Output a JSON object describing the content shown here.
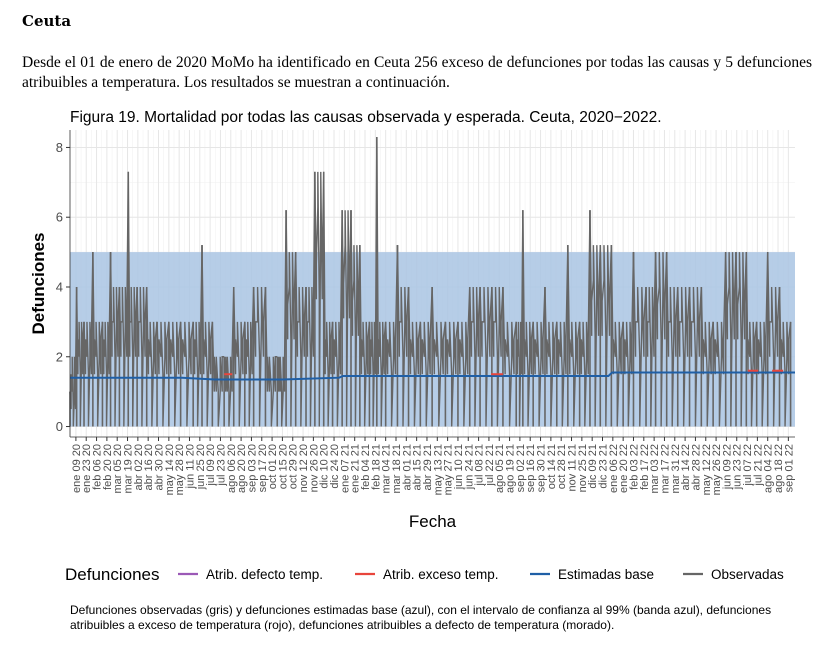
{
  "section_title": "Ceuta",
  "intro_text": "Desde el 01 de enero de 2020 MoMo ha identificado en Ceuta 256 exceso de defunciones por todas las causas y 5 defunciones atribuibles a temperatura. Los resultados se muestran a continuación.",
  "caption": "Defunciones observadas (gris) y defunciones estimadas base (azul), con el intervalo de confianza al 99% (banda azul), defunciones atribuibles a exceso de temperatura (rojo), defunciones atribuibles a defecto de temperatura (morado).",
  "colors": {
    "observed": "#666666",
    "baseline": "#1f5fa6",
    "band": "#a9c4e3",
    "excess": "#e8453c",
    "deficit": "#9b59b6",
    "grid": "#e6e6e6"
  },
  "chart_data": {
    "type": "line",
    "title": "Figura 19. Mortalidad por todas las causas observada y esperada. Ceuta, 2020−2022.",
    "xlabel": "Fecha",
    "ylabel": "Defunciones",
    "ylim": [
      -0.3,
      8.5
    ],
    "yticks": [
      0,
      2,
      4,
      6,
      8
    ],
    "grid": true,
    "x_range": [
      "2020-01-01",
      "2022-09-10"
    ],
    "x_tick_labels": [
      "ene 09 20",
      "ene 23 20",
      "feb 06 20",
      "feb 20 20",
      "mar 05 20",
      "mar 19 20",
      "abr 02 20",
      "abr 16 20",
      "abr 30 20",
      "may 14 20",
      "may 28 20",
      "jun 11 20",
      "jun 25 20",
      "jul 09 20",
      "jul 23 20",
      "ago 06 20",
      "ago 20 20",
      "sep 03 20",
      "sep 17 20",
      "oct 01 20",
      "oct 15 20",
      "oct 29 20",
      "nov 12 20",
      "nov 26 20",
      "dic 10 20",
      "dic 24 20",
      "ene 07 21",
      "ene 21 21",
      "feb 04 21",
      "feb 18 21",
      "mar 04 21",
      "mar 18 21",
      "abr 01 21",
      "abr 15 21",
      "abr 29 21",
      "may 13 21",
      "may 27 21",
      "jun 10 21",
      "jun 24 21",
      "jul 08 21",
      "jul 22 21",
      "ago 05 21",
      "ago 19 21",
      "sep 02 21",
      "sep 16 21",
      "sep 30 21",
      "oct 14 21",
      "oct 28 21",
      "nov 11 21",
      "nov 25 21",
      "dic 09 21",
      "dic 23 21",
      "ene 06 22",
      "ene 20 22",
      "feb 03 22",
      "feb 17 22",
      "mar 03 22",
      "mar 17 22",
      "mar 31 22",
      "abr 14 22",
      "abr 28 22",
      "may 12 22",
      "may 26 22",
      "jun 09 22",
      "jun 23 22",
      "jul 07 22",
      "jul 21 22",
      "ago 04 22",
      "ago 18 22",
      "sep 01 22"
    ],
    "confidence_band": {
      "lower": 0,
      "upper": 5
    },
    "legend": {
      "title": "Defunciones",
      "placement": "bottom",
      "entries": [
        "Atrib. defecto temp.",
        "Atrib. exceso temp.",
        "Estimadas base",
        "Observadas"
      ]
    },
    "series": [
      {
        "name": "Estimadas base",
        "values": [
          {
            "x": "2020-01-01",
            "y": 1.4
          },
          {
            "x": "2020-06-01",
            "y": 1.4
          },
          {
            "x": "2020-07-15",
            "y": 1.35
          },
          {
            "x": "2020-10-15",
            "y": 1.35
          },
          {
            "x": "2020-12-31",
            "y": 1.4
          },
          {
            "x": "2021-01-05",
            "y": 1.45
          },
          {
            "x": "2021-12-31",
            "y": 1.45
          },
          {
            "x": "2022-01-05",
            "y": 1.55
          },
          {
            "x": "2022-09-10",
            "y": 1.55
          }
        ]
      },
      {
        "name": "Atrib. exceso temp.",
        "values": [
          {
            "x": "2020-07-28",
            "y": 1.5
          },
          {
            "x": "2020-08-08",
            "y": 1.5
          },
          {
            "x": "2021-07-25",
            "y": 1.5
          },
          {
            "x": "2021-08-10",
            "y": 1.5
          },
          {
            "x": "2022-07-08",
            "y": 1.6
          },
          {
            "x": "2022-07-22",
            "y": 1.6
          },
          {
            "x": "2022-08-10",
            "y": 1.6
          },
          {
            "x": "2022-08-25",
            "y": 1.6
          }
        ]
      },
      {
        "name": "Observadas",
        "values": [
          {
            "x": "2020-01-01",
            "y": 1
          },
          {
            "x": "2020-01-10",
            "y": 4
          },
          {
            "x": "2020-01-20",
            "y": 3
          },
          {
            "x": "2020-02-01",
            "y": 5
          },
          {
            "x": "2020-02-14",
            "y": 3
          },
          {
            "x": "2020-02-25",
            "y": 5
          },
          {
            "x": "2020-03-08",
            "y": 4
          },
          {
            "x": "2020-03-20",
            "y": 7.3
          },
          {
            "x": "2020-04-01",
            "y": 4
          },
          {
            "x": "2020-04-14",
            "y": 4
          },
          {
            "x": "2020-04-28",
            "y": 3
          },
          {
            "x": "2020-05-14",
            "y": 3
          },
          {
            "x": "2020-05-30",
            "y": 3
          },
          {
            "x": "2020-06-16",
            "y": 3
          },
          {
            "x": "2020-06-28",
            "y": 5.2
          },
          {
            "x": "2020-07-12",
            "y": 3
          },
          {
            "x": "2020-07-28",
            "y": 2
          },
          {
            "x": "2020-08-10",
            "y": 4
          },
          {
            "x": "2020-08-25",
            "y": 3
          },
          {
            "x": "2020-09-06",
            "y": 4
          },
          {
            "x": "2020-09-22",
            "y": 4
          },
          {
            "x": "2020-10-08",
            "y": 2
          },
          {
            "x": "2020-10-20",
            "y": 6.2
          },
          {
            "x": "2020-11-02",
            "y": 5
          },
          {
            "x": "2020-11-16",
            "y": 4
          },
          {
            "x": "2020-11-28",
            "y": 7.3
          },
          {
            "x": "2020-12-10",
            "y": 7.3
          },
          {
            "x": "2020-12-22",
            "y": 3
          },
          {
            "x": "2021-01-04",
            "y": 6.2
          },
          {
            "x": "2021-01-16",
            "y": 6.2
          },
          {
            "x": "2021-01-28",
            "y": 5.2
          },
          {
            "x": "2021-02-10",
            "y": 3
          },
          {
            "x": "2021-02-20",
            "y": 8.3
          },
          {
            "x": "2021-03-04",
            "y": 3
          },
          {
            "x": "2021-03-20",
            "y": 5.2
          },
          {
            "x": "2021-04-04",
            "y": 4
          },
          {
            "x": "2021-04-20",
            "y": 3
          },
          {
            "x": "2021-05-06",
            "y": 4
          },
          {
            "x": "2021-05-24",
            "y": 3
          },
          {
            "x": "2021-06-10",
            "y": 3
          },
          {
            "x": "2021-06-26",
            "y": 4
          },
          {
            "x": "2021-07-10",
            "y": 4
          },
          {
            "x": "2021-07-26",
            "y": 4
          },
          {
            "x": "2021-08-10",
            "y": 4
          },
          {
            "x": "2021-08-28",
            "y": 3
          },
          {
            "x": "2021-09-06",
            "y": 6.2
          },
          {
            "x": "2021-09-20",
            "y": 3
          },
          {
            "x": "2021-10-06",
            "y": 4
          },
          {
            "x": "2021-10-22",
            "y": 3
          },
          {
            "x": "2021-11-06",
            "y": 5.2
          },
          {
            "x": "2021-11-22",
            "y": 3
          },
          {
            "x": "2021-12-06",
            "y": 6.2
          },
          {
            "x": "2021-12-20",
            "y": 5.2
          },
          {
            "x": "2022-01-04",
            "y": 5.2
          },
          {
            "x": "2022-01-20",
            "y": 3
          },
          {
            "x": "2022-02-03",
            "y": 5
          },
          {
            "x": "2022-02-20",
            "y": 4
          },
          {
            "x": "2022-03-05",
            "y": 5
          },
          {
            "x": "2022-03-20",
            "y": 5
          },
          {
            "x": "2022-04-04",
            "y": 4
          },
          {
            "x": "2022-04-20",
            "y": 4
          },
          {
            "x": "2022-05-06",
            "y": 4
          },
          {
            "x": "2022-05-22",
            "y": 3
          },
          {
            "x": "2022-06-08",
            "y": 5
          },
          {
            "x": "2022-06-22",
            "y": 5
          },
          {
            "x": "2022-07-06",
            "y": 5
          },
          {
            "x": "2022-07-20",
            "y": 3
          },
          {
            "x": "2022-08-04",
            "y": 5
          },
          {
            "x": "2022-08-20",
            "y": 4
          },
          {
            "x": "2022-09-04",
            "y": 3
          }
        ]
      }
    ]
  }
}
